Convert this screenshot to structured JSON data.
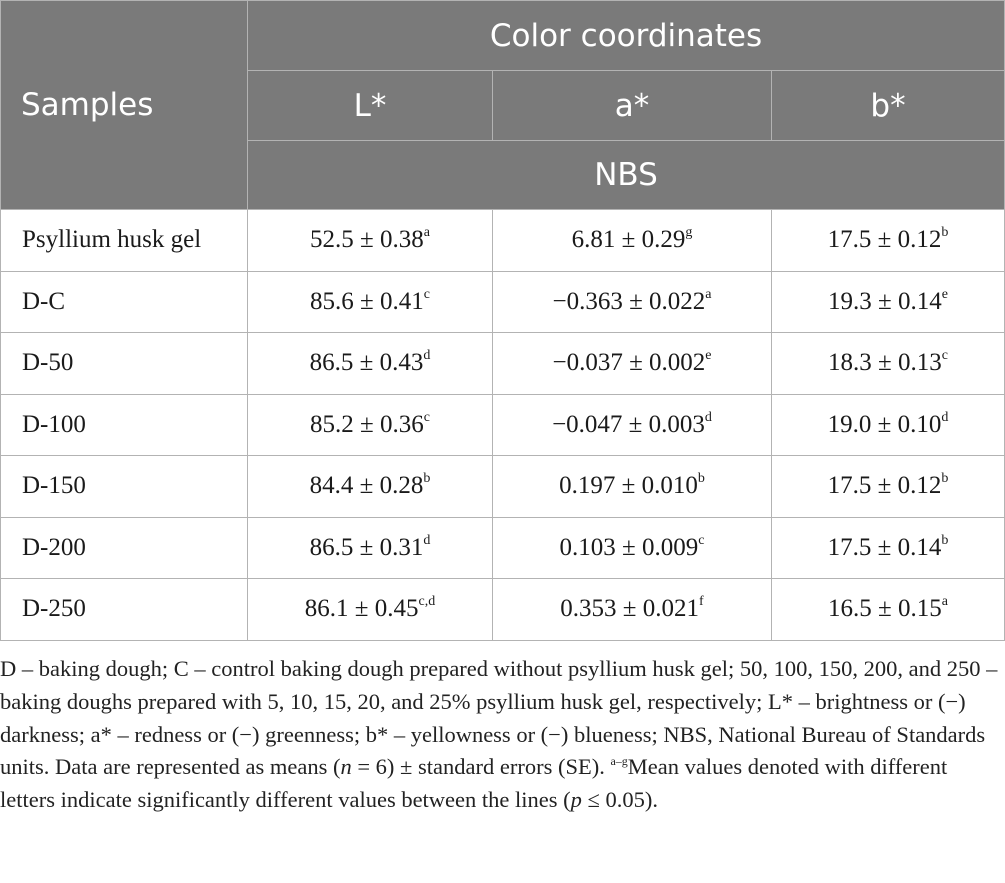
{
  "table": {
    "header": {
      "samples": "Samples",
      "group": "Color coordinates",
      "columns": [
        "L*",
        "a*",
        "b*"
      ],
      "units": "NBS"
    },
    "rows": [
      {
        "sample": "Psyllium husk gel",
        "L": "52.5 ± 0.38",
        "L_sup": "a",
        "a": "6.81 ± 0.29",
        "a_sup": "g",
        "b": "17.5 ± 0.12",
        "b_sup": "b"
      },
      {
        "sample": "D-C",
        "L": "85.6 ± 0.41",
        "L_sup": "c",
        "a": "−0.363 ± 0.022",
        "a_sup": "a",
        "b": "19.3 ± 0.14",
        "b_sup": "e"
      },
      {
        "sample": "D-50",
        "L": "86.5 ± 0.43",
        "L_sup": "d",
        "a": "−0.037 ± 0.002",
        "a_sup": "e",
        "b": "18.3 ± 0.13",
        "b_sup": "c"
      },
      {
        "sample": "D-100",
        "L": "85.2 ± 0.36",
        "L_sup": "c",
        "a": "−0.047 ± 0.003",
        "a_sup": "d",
        "b": "19.0 ± 0.10",
        "b_sup": "d"
      },
      {
        "sample": "D-150",
        "L": "84.4 ± 0.28",
        "L_sup": "b",
        "a": "0.197 ± 0.010",
        "a_sup": "b",
        "b": "17.5 ± 0.12",
        "b_sup": "b"
      },
      {
        "sample": "D-200",
        "L": "86.5 ± 0.31",
        "L_sup": "d",
        "a": "0.103 ± 0.009",
        "a_sup": "c",
        "b": "17.5 ± 0.14",
        "b_sup": "b"
      },
      {
        "sample": "D-250",
        "L": "86.1 ± 0.45",
        "L_sup": "c,d",
        "a": "0.353 ± 0.021",
        "a_sup": "f",
        "b": "16.5 ± 0.15",
        "b_sup": "a"
      }
    ]
  },
  "footnote": {
    "part1": "D – baking dough; C – control baking dough prepared without psyllium husk gel; 50, 100, 150, 200, and 250 – baking doughs prepared with 5, 10, 15, 20, and 25% psyllium husk gel, respectively; L* – brightness or (−) darkness; a* – redness or (−) greenness; b* – yellowness or (−) blueness; NBS, National Bureau of Standards units. Data are represented as means (",
    "n": "n",
    "part2": " = 6) ± standard errors (SE). ",
    "sup": "a–g",
    "part3": "Mean values denoted with different letters indicate significantly different values between the lines (",
    "p": "p",
    "part4": " ≤ 0.05)."
  },
  "colors": {
    "header_bg": "#7a7a7a",
    "header_text": "#ffffff",
    "border": "#b3b3b3"
  }
}
